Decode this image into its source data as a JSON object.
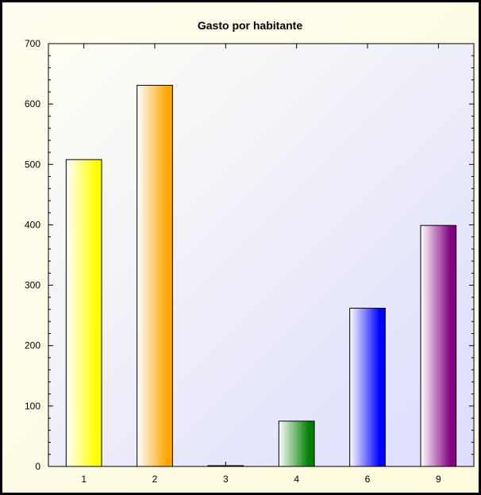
{
  "chart_data": {
    "type": "bar",
    "title": "Gasto por habitante",
    "xlabel": "",
    "ylabel": "",
    "categories": [
      "1",
      "2",
      "3",
      "4",
      "6",
      "9"
    ],
    "values": [
      508,
      631,
      1,
      75,
      262,
      399
    ],
    "ylim": [
      0,
      700
    ],
    "yticks": [
      0,
      100,
      200,
      300,
      400,
      500,
      600,
      700
    ],
    "grid": false,
    "legend": "none",
    "bar_colors": [
      "#ffff00",
      "#ffa500",
      "#ff0000",
      "#008000",
      "#0000ff",
      "#800080"
    ],
    "plot_background": [
      "#fffff4",
      "#dcdcff"
    ]
  }
}
